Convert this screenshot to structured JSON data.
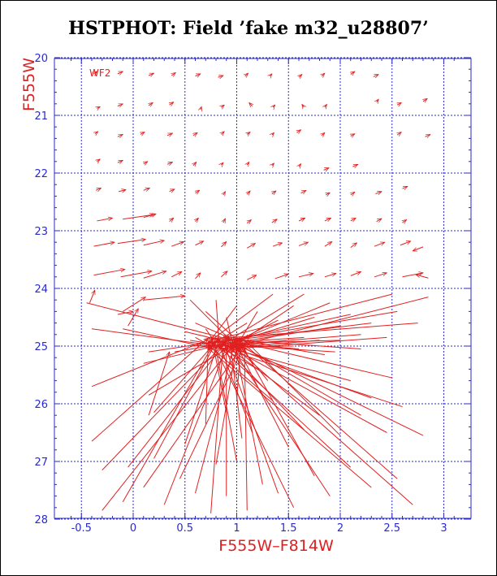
{
  "chart_data": {
    "type": "vector-field",
    "title": "HSTPHOT: Field ’fake m32_u28807’",
    "xlabel": "F555W–F814W",
    "ylabel": "F555W",
    "panel_label": "WF2",
    "xlim": [
      -0.7,
      3.25
    ],
    "ylim": [
      28,
      20
    ],
    "y_inverted": true,
    "grid": true,
    "xticks": [
      "-0.5",
      "0",
      "0.5",
      "1",
      "1.5",
      "2",
      "2.5",
      "3"
    ],
    "yticks": [
      "20",
      "21",
      "22",
      "23",
      "24",
      "25",
      "26",
      "27",
      "28"
    ],
    "colors": {
      "vectors": "#e02020",
      "axes": "#2a2acc",
      "grid": "#2a2acc",
      "title": "#000000",
      "label": "#e02020"
    },
    "regular_vectors": [
      {
        "x": -0.35,
        "y": 20.88,
        "dx": 0.03,
        "dy": -0.03
      },
      {
        "x": -0.15,
        "y": 20.84,
        "dx": 0.05,
        "dy": -0.04
      },
      {
        "x": 0.15,
        "y": 20.83,
        "dx": 0.04,
        "dy": -0.05
      },
      {
        "x": 0.35,
        "y": 20.82,
        "dx": 0.04,
        "dy": -0.05
      },
      {
        "x": 0.65,
        "y": 20.9,
        "dx": 0.01,
        "dy": -0.05
      },
      {
        "x": 0.85,
        "y": 20.86,
        "dx": 0.03,
        "dy": -0.04
      },
      {
        "x": 1.15,
        "y": 20.84,
        "dx": -0.03,
        "dy": -0.06
      },
      {
        "x": 1.35,
        "y": 20.86,
        "dx": 0.02,
        "dy": -0.04
      },
      {
        "x": 1.65,
        "y": 20.86,
        "dx": -0.02,
        "dy": -0.05
      },
      {
        "x": 1.85,
        "y": 20.86,
        "dx": 0.02,
        "dy": -0.05
      },
      {
        "x": 2.35,
        "y": 20.77,
        "dx": 0.02,
        "dy": -0.05
      },
      {
        "x": 2.55,
        "y": 20.82,
        "dx": 0.04,
        "dy": -0.04
      },
      {
        "x": 2.8,
        "y": 20.76,
        "dx": 0.04,
        "dy": -0.05
      },
      {
        "x": -0.38,
        "y": 20.28,
        "dx": 0.03,
        "dy": -0.04
      },
      {
        "x": -0.15,
        "y": 20.28,
        "dx": 0.05,
        "dy": -0.04
      },
      {
        "x": 0.15,
        "y": 20.31,
        "dx": 0.05,
        "dy": -0.04
      },
      {
        "x": 0.37,
        "y": 20.31,
        "dx": 0.04,
        "dy": -0.05
      },
      {
        "x": 0.6,
        "y": 20.32,
        "dx": 0.05,
        "dy": -0.04
      },
      {
        "x": 0.82,
        "y": 20.34,
        "dx": 0.05,
        "dy": -0.03
      },
      {
        "x": 1.08,
        "y": 20.32,
        "dx": 0.03,
        "dy": -0.05
      },
      {
        "x": 1.32,
        "y": 20.32,
        "dx": 0.02,
        "dy": -0.04
      },
      {
        "x": 1.6,
        "y": 20.34,
        "dx": 0.03,
        "dy": -0.05
      },
      {
        "x": 1.82,
        "y": 20.32,
        "dx": 0.03,
        "dy": -0.05
      },
      {
        "x": 2.1,
        "y": 20.29,
        "dx": 0.04,
        "dy": -0.05
      },
      {
        "x": 2.32,
        "y": 20.33,
        "dx": 0.05,
        "dy": -0.04
      },
      {
        "x": -0.37,
        "y": 21.32,
        "dx": 0.03,
        "dy": -0.04
      },
      {
        "x": -0.15,
        "y": 21.37,
        "dx": 0.05,
        "dy": -0.04
      },
      {
        "x": 0.07,
        "y": 21.33,
        "dx": 0.04,
        "dy": -0.04
      },
      {
        "x": 0.33,
        "y": 21.35,
        "dx": 0.05,
        "dy": -0.04
      },
      {
        "x": 0.58,
        "y": 21.35,
        "dx": 0.04,
        "dy": -0.05
      },
      {
        "x": 0.85,
        "y": 21.33,
        "dx": 0.03,
        "dy": -0.05
      },
      {
        "x": 1.1,
        "y": 21.33,
        "dx": 0.03,
        "dy": -0.04
      },
      {
        "x": 1.34,
        "y": 21.34,
        "dx": 0.02,
        "dy": -0.04
      },
      {
        "x": 1.58,
        "y": 21.3,
        "dx": 0.04,
        "dy": -0.05
      },
      {
        "x": 1.82,
        "y": 21.35,
        "dx": 0.03,
        "dy": -0.05
      },
      {
        "x": 2.1,
        "y": 21.36,
        "dx": 0.04,
        "dy": -0.04
      },
      {
        "x": 2.55,
        "y": 21.34,
        "dx": 0.04,
        "dy": -0.05
      },
      {
        "x": 2.82,
        "y": 21.37,
        "dx": 0.05,
        "dy": -0.04
      },
      {
        "x": -0.35,
        "y": 21.8,
        "dx": 0.03,
        "dy": -0.04
      },
      {
        "x": -0.15,
        "y": 21.82,
        "dx": 0.05,
        "dy": -0.04
      },
      {
        "x": 0.1,
        "y": 21.84,
        "dx": 0.04,
        "dy": -0.04
      },
      {
        "x": 0.33,
        "y": 21.85,
        "dx": 0.05,
        "dy": -0.04
      },
      {
        "x": 0.58,
        "y": 21.87,
        "dx": 0.03,
        "dy": -0.06
      },
      {
        "x": 0.85,
        "y": 21.86,
        "dx": 0.02,
        "dy": -0.04
      },
      {
        "x": 1.1,
        "y": 21.86,
        "dx": 0.02,
        "dy": -0.05
      },
      {
        "x": 1.34,
        "y": 21.87,
        "dx": 0.02,
        "dy": -0.04
      },
      {
        "x": 1.6,
        "y": 21.89,
        "dx": 0.02,
        "dy": -0.05
      },
      {
        "x": 1.84,
        "y": 21.95,
        "dx": 0.05,
        "dy": -0.04
      },
      {
        "x": 2.12,
        "y": 21.89,
        "dx": 0.05,
        "dy": -0.04
      },
      {
        "x": -0.36,
        "y": 22.3,
        "dx": 0.05,
        "dy": -0.04
      },
      {
        "x": -0.14,
        "y": 22.32,
        "dx": 0.07,
        "dy": -0.03
      },
      {
        "x": 0.1,
        "y": 22.3,
        "dx": 0.06,
        "dy": -0.04
      },
      {
        "x": 0.35,
        "y": 22.32,
        "dx": 0.05,
        "dy": -0.04
      },
      {
        "x": 0.6,
        "y": 22.35,
        "dx": 0.04,
        "dy": -0.05
      },
      {
        "x": 0.87,
        "y": 22.38,
        "dx": 0.02,
        "dy": -0.06
      },
      {
        "x": 1.1,
        "y": 22.37,
        "dx": 0.03,
        "dy": -0.06
      },
      {
        "x": 1.34,
        "y": 22.36,
        "dx": 0.04,
        "dy": -0.05
      },
      {
        "x": 1.62,
        "y": 22.35,
        "dx": 0.05,
        "dy": -0.05
      },
      {
        "x": 1.86,
        "y": 22.38,
        "dx": 0.04,
        "dy": -0.04
      },
      {
        "x": 2.1,
        "y": 22.38,
        "dx": 0.04,
        "dy": -0.05
      },
      {
        "x": 2.34,
        "y": 22.36,
        "dx": 0.06,
        "dy": -0.04
      },
      {
        "x": 2.6,
        "y": 22.27,
        "dx": 0.05,
        "dy": -0.04
      },
      {
        "x": -0.35,
        "y": 22.83,
        "dx": 0.15,
        "dy": -0.05
      },
      {
        "x": -0.1,
        "y": 22.8,
        "dx": 0.3,
        "dy": -0.08
      },
      {
        "x": 0.1,
        "y": 22.77,
        "dx": 0.12,
        "dy": -0.06
      },
      {
        "x": 0.35,
        "y": 22.84,
        "dx": 0.04,
        "dy": -0.06
      },
      {
        "x": 0.6,
        "y": 22.84,
        "dx": 0.03,
        "dy": -0.06
      },
      {
        "x": 0.87,
        "y": 22.86,
        "dx": 0.02,
        "dy": -0.07
      },
      {
        "x": 1.1,
        "y": 22.87,
        "dx": 0.04,
        "dy": -0.06
      },
      {
        "x": 1.34,
        "y": 22.86,
        "dx": 0.05,
        "dy": -0.06
      },
      {
        "x": 1.6,
        "y": 22.83,
        "dx": 0.06,
        "dy": -0.05
      },
      {
        "x": 1.85,
        "y": 22.83,
        "dx": 0.06,
        "dy": -0.05
      },
      {
        "x": 2.1,
        "y": 22.83,
        "dx": 0.05,
        "dy": -0.05
      },
      {
        "x": 2.35,
        "y": 22.84,
        "dx": 0.05,
        "dy": -0.05
      },
      {
        "x": 2.6,
        "y": 22.86,
        "dx": 0.04,
        "dy": -0.05
      },
      {
        "x": -0.38,
        "y": 23.27,
        "dx": 0.2,
        "dy": -0.07
      },
      {
        "x": -0.15,
        "y": 23.22,
        "dx": 0.27,
        "dy": -0.07
      },
      {
        "x": 0.1,
        "y": 23.25,
        "dx": 0.2,
        "dy": -0.08
      },
      {
        "x": 0.37,
        "y": 23.27,
        "dx": 0.12,
        "dy": -0.08
      },
      {
        "x": 0.6,
        "y": 23.25,
        "dx": 0.08,
        "dy": -0.07
      },
      {
        "x": 0.85,
        "y": 23.28,
        "dx": 0.05,
        "dy": -0.09
      },
      {
        "x": 1.1,
        "y": 23.3,
        "dx": 0.08,
        "dy": -0.08
      },
      {
        "x": 1.35,
        "y": 23.27,
        "dx": 0.09,
        "dy": -0.06
      },
      {
        "x": 1.6,
        "y": 23.26,
        "dx": 0.09,
        "dy": -0.06
      },
      {
        "x": 1.85,
        "y": 23.27,
        "dx": 0.07,
        "dy": -0.08
      },
      {
        "x": 2.1,
        "y": 23.29,
        "dx": 0.06,
        "dy": -0.08
      },
      {
        "x": 2.33,
        "y": 23.27,
        "dx": 0.1,
        "dy": -0.07
      },
      {
        "x": 2.58,
        "y": 23.25,
        "dx": 0.1,
        "dy": -0.07
      },
      {
        "x": 2.8,
        "y": 23.28,
        "dx": -0.1,
        "dy": 0.07
      },
      {
        "x": -0.38,
        "y": 23.77,
        "dx": 0.3,
        "dy": -0.1
      },
      {
        "x": -0.12,
        "y": 23.8,
        "dx": 0.3,
        "dy": -0.1
      },
      {
        "x": 0.1,
        "y": 23.82,
        "dx": 0.22,
        "dy": -0.12
      },
      {
        "x": 0.37,
        "y": 23.8,
        "dx": 0.1,
        "dy": -0.09
      },
      {
        "x": 0.6,
        "y": 23.83,
        "dx": 0.05,
        "dy": -0.1
      },
      {
        "x": 0.85,
        "y": 23.8,
        "dx": 0.06,
        "dy": -0.1
      },
      {
        "x": 1.1,
        "y": 23.85,
        "dx": 0.09,
        "dy": -0.08
      },
      {
        "x": 1.37,
        "y": 23.83,
        "dx": 0.13,
        "dy": -0.08
      },
      {
        "x": 1.6,
        "y": 23.8,
        "dx": 0.14,
        "dy": -0.06
      },
      {
        "x": 1.85,
        "y": 23.8,
        "dx": 0.11,
        "dy": -0.06
      },
      {
        "x": 2.1,
        "y": 23.78,
        "dx": 0.1,
        "dy": -0.07
      },
      {
        "x": 2.33,
        "y": 23.8,
        "dx": 0.12,
        "dy": -0.07
      },
      {
        "x": 2.6,
        "y": 23.8,
        "dx": 0.2,
        "dy": -0.07
      },
      {
        "x": 2.85,
        "y": 23.82,
        "dx": -0.12,
        "dy": -0.06
      }
    ],
    "convergence_vectors": [
      {
        "x": -0.4,
        "y": 26.65
      },
      {
        "x": -0.3,
        "y": 27.15
      },
      {
        "x": -0.3,
        "y": 27.85
      },
      {
        "x": -0.1,
        "y": 27.7
      },
      {
        "x": -0.05,
        "y": 27.1
      },
      {
        "x": 0.1,
        "y": 27.45
      },
      {
        "x": 0.2,
        "y": 26.95
      },
      {
        "x": 0.3,
        "y": 27.75
      },
      {
        "x": 0.45,
        "y": 27.3
      },
      {
        "x": 0.5,
        "y": 26.7
      },
      {
        "x": 0.6,
        "y": 27.55
      },
      {
        "x": 0.7,
        "y": 26.35
      },
      {
        "x": 0.75,
        "y": 27.9
      },
      {
        "x": 0.8,
        "y": 27.05
      },
      {
        "x": 0.9,
        "y": 26.15
      },
      {
        "x": 0.9,
        "y": 27.6
      },
      {
        "x": 1.0,
        "y": 25.95
      },
      {
        "x": 1.0,
        "y": 27.0
      },
      {
        "x": 1.05,
        "y": 26.6
      },
      {
        "x": 1.1,
        "y": 27.85
      },
      {
        "x": 1.15,
        "y": 26.5
      },
      {
        "x": 1.25,
        "y": 27.4
      },
      {
        "x": 1.35,
        "y": 25.95
      },
      {
        "x": 1.4,
        "y": 27.55
      },
      {
        "x": 1.5,
        "y": 26.75
      },
      {
        "x": 1.55,
        "y": 27.8
      },
      {
        "x": 1.65,
        "y": 26.45
      },
      {
        "x": 1.75,
        "y": 27.25
      },
      {
        "x": 1.8,
        "y": 26.2
      },
      {
        "x": 1.9,
        "y": 27.6
      },
      {
        "x": 2.0,
        "y": 26.55
      },
      {
        "x": 2.1,
        "y": 27.1
      },
      {
        "x": 2.2,
        "y": 26.2
      },
      {
        "x": 2.3,
        "y": 27.45
      },
      {
        "x": 2.45,
        "y": 26.5
      },
      {
        "x": 2.55,
        "y": 27.3
      },
      {
        "x": 2.6,
        "y": 26.05
      },
      {
        "x": 2.7,
        "y": 27.75
      },
      {
        "x": 2.8,
        "y": 26.55
      },
      {
        "x": 2.3,
        "y": 25.9
      },
      {
        "x": 2.1,
        "y": 25.6
      },
      {
        "x": 2.5,
        "y": 25.55
      },
      {
        "x": 0.2,
        "y": 26.15
      },
      {
        "x": 0.15,
        "y": 25.85
      },
      {
        "x": -0.4,
        "y": 25.7
      },
      {
        "x": -0.4,
        "y": 24.7
      },
      {
        "x": -0.45,
        "y": 24.25
      },
      {
        "x": -0.1,
        "y": 24.7
      },
      {
        "x": 0.1,
        "y": 25.3
      },
      {
        "x": 0.15,
        "y": 25.1
      },
      {
        "x": 0.4,
        "y": 25.1
      },
      {
        "x": 0.55,
        "y": 24.2
      },
      {
        "x": 0.7,
        "y": 24.4
      },
      {
        "x": 0.8,
        "y": 24.2
      },
      {
        "x": 0.9,
        "y": 24.5
      },
      {
        "x": 1.0,
        "y": 24.3
      },
      {
        "x": 1.1,
        "y": 24.6
      },
      {
        "x": 1.2,
        "y": 24.4
      },
      {
        "x": 1.35,
        "y": 24.1
      },
      {
        "x": 1.4,
        "y": 24.55
      },
      {
        "x": 1.55,
        "y": 24.3
      },
      {
        "x": 1.65,
        "y": 24.1
      },
      {
        "x": 1.75,
        "y": 24.5
      },
      {
        "x": 1.9,
        "y": 24.25
      },
      {
        "x": 2.0,
        "y": 24.65
      },
      {
        "x": 2.1,
        "y": 24.45
      },
      {
        "x": 2.2,
        "y": 24.8
      },
      {
        "x": 2.3,
        "y": 24.6
      },
      {
        "x": 2.45,
        "y": 24.85
      },
      {
        "x": 2.55,
        "y": 24.4
      },
      {
        "x": 2.75,
        "y": 24.6
      },
      {
        "x": 2.85,
        "y": 24.15
      },
      {
        "x": 2.5,
        "y": 24.1
      },
      {
        "x": 1.5,
        "y": 24.9
      },
      {
        "x": 1.65,
        "y": 24.85
      },
      {
        "x": 1.8,
        "y": 24.9
      },
      {
        "x": 2.0,
        "y": 24.9
      },
      {
        "x": 2.2,
        "y": 25.05
      },
      {
        "x": 1.95,
        "y": 25.1
      },
      {
        "x": 1.85,
        "y": 25.15
      },
      {
        "x": 0.6,
        "y": 24.85
      },
      {
        "x": 0.5,
        "y": 24.75
      },
      {
        "x": 0.55,
        "y": 24.9
      },
      {
        "x": 0.7,
        "y": 24.7
      },
      {
        "x": 0.6,
        "y": 24.6
      },
      {
        "x": 0.55,
        "y": 25.0
      },
      {
        "x": 0.75,
        "y": 24.95
      },
      {
        "x": 1.55,
        "y": 25.0
      },
      {
        "x": 1.6,
        "y": 25.05
      },
      {
        "x": 1.2,
        "y": 25.4
      },
      {
        "x": 1.3,
        "y": 25.6
      }
    ],
    "convergence_target": {
      "x": 0.9,
      "y": 24.95
    },
    "extra_vectors": [
      {
        "x": -0.42,
        "y": 24.25,
        "dx": 0.05,
        "dy": -0.22
      },
      {
        "x": -0.1,
        "y": 24.4,
        "dx": 0.22,
        "dy": -0.25
      },
      {
        "x": -0.15,
        "y": 24.45,
        "dx": 0.15,
        "dy": -0.05
      },
      {
        "x": 0.1,
        "y": 24.2,
        "dx": 0.4,
        "dy": -0.07
      },
      {
        "x": -0.05,
        "y": 24.65,
        "dx": 0.1,
        "dy": -0.3
      },
      {
        "x": 0.15,
        "y": 26.2,
        "dx": 0.2,
        "dy": -1.1
      }
    ]
  }
}
